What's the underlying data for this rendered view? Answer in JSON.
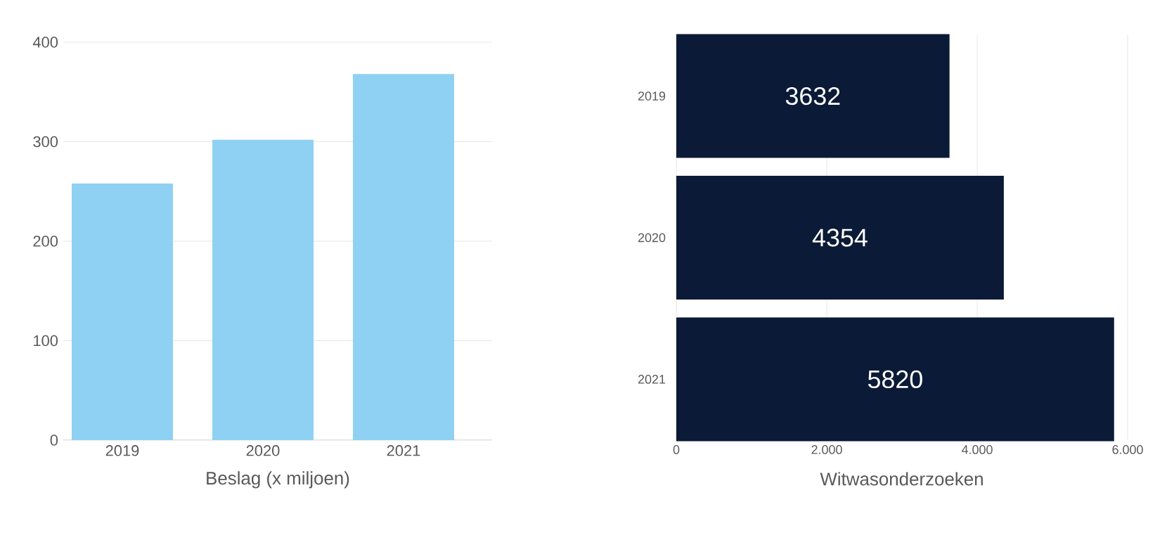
{
  "chart_data": [
    {
      "type": "bar",
      "xlabel": "Beslag (x miljoen)",
      "categories": [
        "2019",
        "2020",
        "2021"
      ],
      "values": [
        258,
        302,
        368
      ],
      "color": "#8fd1f2",
      "ylim": [
        0,
        400
      ],
      "yticks": [
        0,
        100,
        200,
        300,
        400
      ],
      "grid": "y"
    },
    {
      "type": "bar",
      "orientation": "horizontal",
      "xlabel": "Witwasonderzoeken",
      "categories": [
        "2019",
        "2020",
        "2021"
      ],
      "values": [
        3632,
        4354,
        5820
      ],
      "color": "#0b1a36",
      "xlim": [
        0,
        6000
      ],
      "xticks": [
        0,
        {
          "value": 2000,
          "label": "2.000"
        },
        {
          "value": 4000,
          "label": "4.000"
        },
        {
          "value": 6000,
          "label": "6.000"
        }
      ],
      "grid": "x",
      "data_labels": true
    }
  ]
}
